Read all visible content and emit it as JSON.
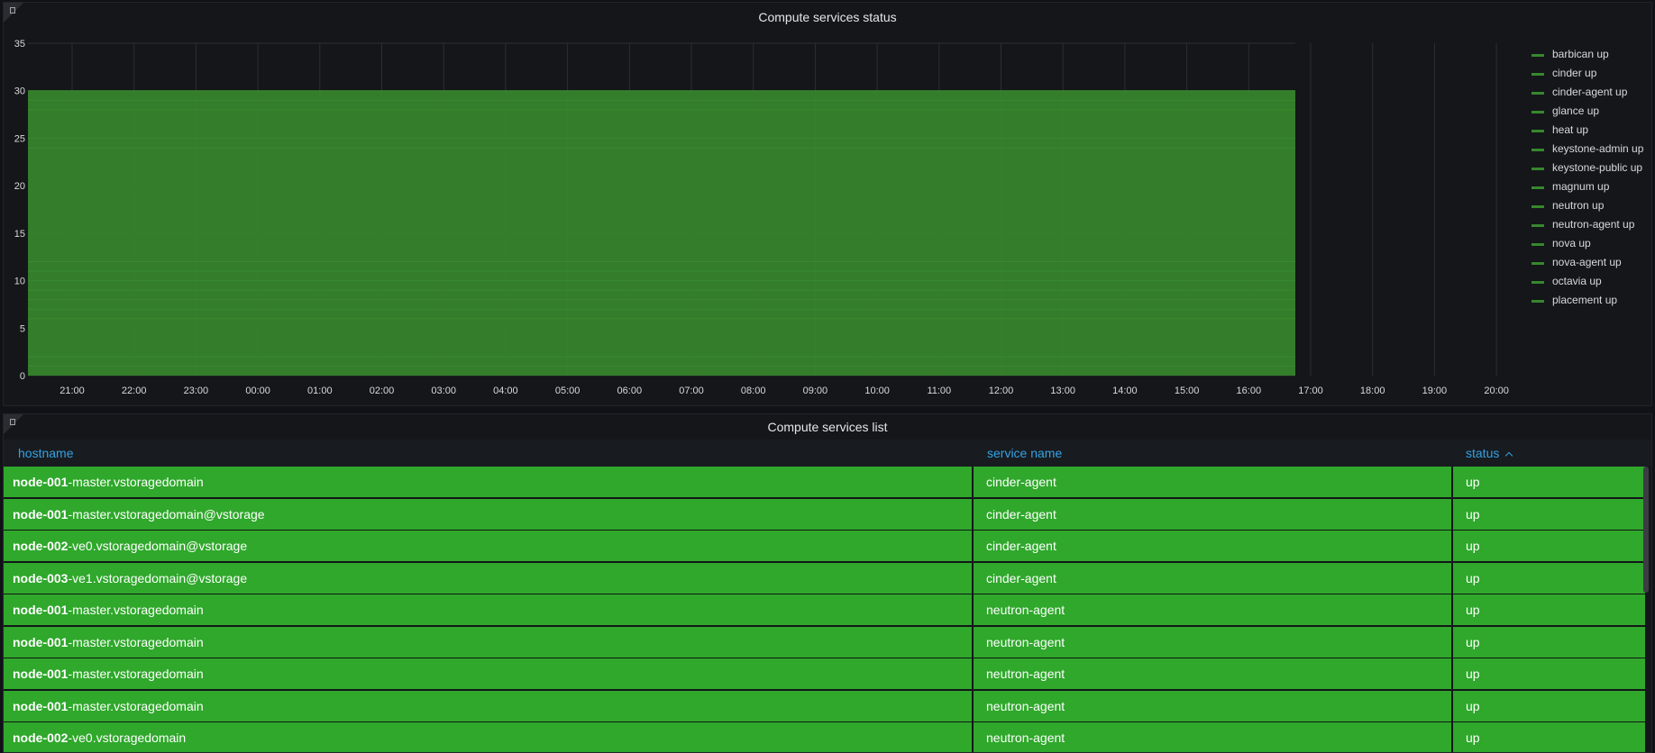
{
  "status_panel": {
    "title": "Compute services status"
  },
  "list_panel": {
    "title": "Compute services list",
    "columns": {
      "hostname": "hostname",
      "service_name": "service name",
      "status": "status"
    },
    "rows": [
      {
        "host_prefix": "node-001",
        "host_suffix": "-master.vstoragedomain",
        "service": "cinder-agent",
        "status": "up"
      },
      {
        "host_prefix": "node-001",
        "host_suffix": "-master.vstoragedomain@vstorage",
        "service": "cinder-agent",
        "status": "up"
      },
      {
        "host_prefix": "node-002",
        "host_suffix": "-ve0.vstoragedomain@vstorage",
        "service": "cinder-agent",
        "status": "up"
      },
      {
        "host_prefix": "node-003",
        "host_suffix": "-ve1.vstoragedomain@vstorage",
        "service": "cinder-agent",
        "status": "up"
      },
      {
        "host_prefix": "node-001",
        "host_suffix": "-master.vstoragedomain",
        "service": "neutron-agent",
        "status": "up"
      },
      {
        "host_prefix": "node-001",
        "host_suffix": "-master.vstoragedomain",
        "service": "neutron-agent",
        "status": "up"
      },
      {
        "host_prefix": "node-001",
        "host_suffix": "-master.vstoragedomain",
        "service": "neutron-agent",
        "status": "up"
      },
      {
        "host_prefix": "node-001",
        "host_suffix": "-master.vstoragedomain",
        "service": "neutron-agent",
        "status": "up"
      },
      {
        "host_prefix": "node-002",
        "host_suffix": "-ve0.vstoragedomain",
        "service": "neutron-agent",
        "status": "up"
      }
    ],
    "sort_column": "status",
    "sort_direction": "ascending"
  },
  "colors": {
    "series": "#37872d",
    "row_bg": "#2fa82b",
    "header_link": "#33a2e5",
    "panel_bg": "#141619"
  },
  "chart_data": {
    "type": "area",
    "stacked": true,
    "title": "Compute services status",
    "x": [
      "21:00",
      "22:00",
      "23:00",
      "00:00",
      "01:00",
      "02:00",
      "03:00",
      "04:00",
      "05:00",
      "06:00",
      "07:00",
      "08:00",
      "09:00",
      "10:00",
      "11:00",
      "12:00",
      "13:00",
      "14:00",
      "15:00",
      "16:00",
      "17:00",
      "18:00",
      "19:00",
      "20:00"
    ],
    "yticks": [
      0,
      5,
      10,
      15,
      20,
      25,
      30,
      35
    ],
    "ylim": [
      0,
      35
    ],
    "series": [
      {
        "name": "barbican up",
        "value": 1
      },
      {
        "name": "cinder up",
        "value": 1
      },
      {
        "name": "cinder-agent up",
        "value": 4
      },
      {
        "name": "glance up",
        "value": 1
      },
      {
        "name": "heat up",
        "value": 1
      },
      {
        "name": "keystone-admin up",
        "value": 1
      },
      {
        "name": "keystone-public up",
        "value": 1
      },
      {
        "name": "magnum up",
        "value": 1
      },
      {
        "name": "neutron up",
        "value": 1
      },
      {
        "name": "neutron-agent up",
        "value": 12
      },
      {
        "name": "nova up",
        "value": 1
      },
      {
        "name": "nova-agent up",
        "value": 3
      },
      {
        "name": "octavia up",
        "value": 1
      },
      {
        "name": "placement up",
        "value": 1
      }
    ],
    "stack_total": 30,
    "grid": true,
    "legend_position": "right"
  }
}
